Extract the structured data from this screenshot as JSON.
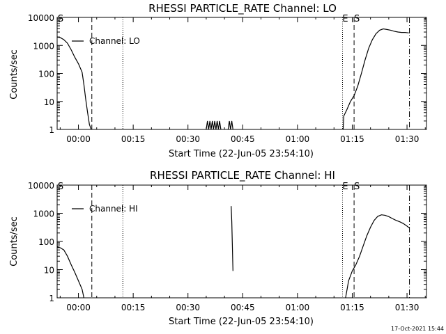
{
  "footer_timestamp": "17-Oct-2021 15:44",
  "chart_data": [
    {
      "type": "line",
      "title": "RHESSI PARTICLE_RATE Channel: LO",
      "xlabel": "Start Time (22-Jun-05 23:54:10)",
      "ylabel": "Counts/sec",
      "xlim": [
        "23:54:10",
        "01:35:20"
      ],
      "ylim": [
        1,
        10000
      ],
      "yscale": "log",
      "grid": false,
      "legend_position": "upper-left",
      "x_ticks": [
        "00:00",
        "00:15",
        "00:30",
        "00:45",
        "01:00",
        "01:15",
        "01:30"
      ],
      "y_ticks": [
        "1",
        "10",
        "100",
        "1000",
        "10000"
      ],
      "markers": [
        {
          "label": "S",
          "time": "23:54:10",
          "style": "none"
        },
        {
          "label": "",
          "time": "00:03:40",
          "style": "dashed"
        },
        {
          "label": "",
          "time": "00:12:10",
          "style": "dotted"
        },
        {
          "label": "E",
          "time": "01:12:20",
          "style": "dotted"
        },
        {
          "label": "S",
          "time": "01:15:30",
          "style": "dashed"
        },
        {
          "label": "",
          "time": "01:30:40",
          "style": "dashdot"
        }
      ],
      "series": [
        {
          "name": "Channel: LO",
          "segments": [
            [
              [
                "23:54:10",
                2000
              ],
              [
                "23:55:00",
                1900
              ],
              [
                "23:56:00",
                1600
              ],
              [
                "23:57:00",
                1200
              ],
              [
                "23:58:00",
                700
              ],
              [
                "23:59:00",
                380
              ],
              [
                "00:00:00",
                220
              ],
              [
                "00:01:00",
                110
              ],
              [
                "00:01:30",
                40
              ],
              [
                "00:02:00",
                12
              ],
              [
                "00:02:30",
                4
              ],
              [
                "00:03:00",
                1.5
              ],
              [
                "00:03:30",
                1
              ]
            ],
            [
              [
                "00:35:00",
                1
              ],
              [
                "00:35:20",
                2
              ],
              [
                "00:35:40",
                1
              ],
              [
                "00:36:00",
                2
              ],
              [
                "00:36:20",
                1
              ],
              [
                "00:36:40",
                2
              ],
              [
                "00:37:00",
                1
              ],
              [
                "00:37:20",
                2
              ],
              [
                "00:37:40",
                1
              ],
              [
                "00:38:00",
                2
              ],
              [
                "00:38:20",
                1
              ],
              [
                "00:38:40",
                2
              ],
              [
                "00:39:00",
                1
              ]
            ],
            [
              [
                "00:41:00",
                1
              ],
              [
                "00:41:20",
                2
              ],
              [
                "00:41:40",
                1
              ],
              [
                "00:42:00",
                2
              ],
              [
                "00:42:20",
                1
              ]
            ],
            [
              [
                "01:12:30",
                1
              ],
              [
                "01:12:40",
                3
              ],
              [
                "01:13:30",
                5
              ],
              [
                "01:14:30",
                10
              ],
              [
                "01:15:30",
                16
              ],
              [
                "01:16:30",
                35
              ],
              [
                "01:17:30",
                100
              ],
              [
                "01:18:30",
                300
              ],
              [
                "01:19:30",
                800
              ],
              [
                "01:20:30",
                1600
              ],
              [
                "01:21:30",
                2600
              ],
              [
                "01:22:30",
                3500
              ],
              [
                "01:23:30",
                3900
              ],
              [
                "01:24:30",
                3700
              ],
              [
                "01:25:30",
                3500
              ],
              [
                "01:26:30",
                3200
              ],
              [
                "01:27:30",
                3000
              ],
              [
                "01:28:30",
                2900
              ],
              [
                "01:29:30",
                2900
              ],
              [
                "01:30:30",
                2800
              ]
            ]
          ]
        }
      ]
    },
    {
      "type": "line",
      "title": "RHESSI PARTICLE_RATE Channel: HI",
      "xlabel": "Start Time (22-Jun-05 23:54:10)",
      "ylabel": "Counts/sec",
      "xlim": [
        "23:54:10",
        "01:35:20"
      ],
      "ylim": [
        1,
        10000
      ],
      "yscale": "log",
      "grid": false,
      "legend_position": "upper-left",
      "x_ticks": [
        "00:00",
        "00:15",
        "00:30",
        "00:45",
        "01:00",
        "01:15",
        "01:30"
      ],
      "y_ticks": [
        "1",
        "10",
        "100",
        "1000",
        "10000"
      ],
      "markers": [
        {
          "label": "S",
          "time": "23:54:10",
          "style": "none"
        },
        {
          "label": "",
          "time": "00:03:40",
          "style": "dashed"
        },
        {
          "label": "",
          "time": "00:12:10",
          "style": "dotted"
        },
        {
          "label": "E",
          "time": "01:12:20",
          "style": "dotted"
        },
        {
          "label": "S",
          "time": "01:15:30",
          "style": "dashed"
        },
        {
          "label": "",
          "time": "01:30:40",
          "style": "dashdot"
        }
      ],
      "series": [
        {
          "name": "Channel: HI",
          "segments": [
            [
              [
                "23:54:10",
                65
              ],
              [
                "23:55:00",
                60
              ],
              [
                "23:56:00",
                50
              ],
              [
                "23:57:00",
                30
              ],
              [
                "23:58:00",
                15
              ],
              [
                "23:59:00",
                8
              ],
              [
                "00:00:00",
                4
              ],
              [
                "00:01:00",
                2
              ],
              [
                "00:01:30",
                1
              ]
            ],
            [
              [
                "00:41:50",
                1800
              ],
              [
                "00:42:00",
                500
              ],
              [
                "00:42:10",
                60
              ],
              [
                "00:42:20",
                9
              ]
            ],
            [
              [
                "01:13:10",
                1
              ],
              [
                "01:14:00",
                4
              ],
              [
                "01:15:00",
                9
              ],
              [
                "01:16:00",
                15
              ],
              [
                "01:17:00",
                30
              ],
              [
                "01:18:00",
                70
              ],
              [
                "01:19:00",
                160
              ],
              [
                "01:20:00",
                320
              ],
              [
                "01:21:00",
                560
              ],
              [
                "01:22:00",
                780
              ],
              [
                "01:23:00",
                880
              ],
              [
                "01:24:00",
                850
              ],
              [
                "01:25:00",
                760
              ],
              [
                "01:26:00",
                650
              ],
              [
                "01:27:00",
                560
              ],
              [
                "01:28:00",
                500
              ],
              [
                "01:29:00",
                430
              ],
              [
                "01:30:00",
                350
              ],
              [
                "01:30:40",
                300
              ]
            ]
          ]
        }
      ]
    }
  ]
}
